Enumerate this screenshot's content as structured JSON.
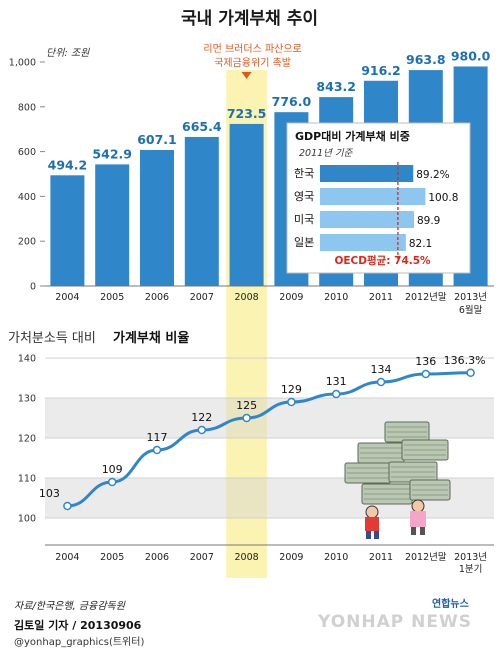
{
  "title": "국내 가계부채 추이",
  "footer": {
    "source": "자료/한국은행, 금융감독원",
    "reporter": "김토일 기자 / 20130906",
    "contact": "@yonhap_graphics(트위터)",
    "logo": "연합뉴스",
    "watermark": "YONHAP NEWS"
  },
  "colors": {
    "bar": "#2f86c9",
    "highlight": "#fbf3b2",
    "annotation": "#e0561b",
    "oecd": "#e0261b",
    "line": "#2f86c9",
    "inset_bar": "#8dc6ee",
    "inset_bar_korea": "#2f86c9"
  },
  "chart_data": [
    {
      "type": "bar",
      "unit_label": "단위: 조원",
      "categories": [
        "2004",
        "2005",
        "2006",
        "2007",
        "2008",
        "2009",
        "2010",
        "2011",
        "2012년말",
        "2013년 6월말"
      ],
      "values": [
        494.2,
        542.9,
        607.1,
        665.4,
        723.5,
        776.0,
        843.2,
        916.2,
        963.8,
        980.0
      ],
      "value_labels": [
        "494.2",
        "542.9",
        "607.1",
        "665.4",
        "723.5",
        "776.0",
        "843.2",
        "916.2",
        "963.8",
        "980.0"
      ],
      "ylim": [
        0,
        1000
      ],
      "yticks": [
        0,
        200,
        400,
        600,
        800,
        1000
      ],
      "ytick_labels": [
        "0",
        "200",
        "400",
        "600",
        "800",
        "1,000"
      ],
      "highlight_category": "2008",
      "annotation": [
        "리먼 브러더스 파산으로",
        "국제금융위기 촉발"
      ],
      "grid": false
    },
    {
      "type": "bar",
      "orientation": "horizontal",
      "title": "GDP대비 가계부채 비중",
      "subtitle": "2011년 기준",
      "categories": [
        "한국",
        "영국",
        "미국",
        "일본"
      ],
      "values": [
        89.2,
        100.8,
        89.9,
        82.1
      ],
      "value_labels": [
        "89.2%",
        "100.8",
        "89.9",
        "82.1"
      ],
      "reference_line": {
        "label": "OECD평균: 74.5%",
        "value": 74.5
      },
      "xlim": [
        0,
        110
      ]
    },
    {
      "type": "line",
      "title": "가처분소득 대비",
      "title_bold": "가계부채 비율",
      "x": [
        "2004",
        "2005",
        "2006",
        "2007",
        "2008",
        "2009",
        "2010",
        "2011",
        "2012년말",
        "2013년 1분기"
      ],
      "y": [
        103,
        109,
        117,
        122,
        125,
        129,
        131,
        134,
        136,
        136.3
      ],
      "value_labels": [
        "103",
        "109",
        "117",
        "122",
        "125",
        "129",
        "131",
        "134",
        "136",
        "136.3%"
      ],
      "ylim": [
        100,
        140
      ],
      "yticks": [
        100,
        110,
        120,
        130,
        140
      ],
      "ytick_labels": [
        "100",
        "110",
        "120",
        "130",
        "140"
      ],
      "highlight_category": "2008",
      "grid": true
    }
  ]
}
